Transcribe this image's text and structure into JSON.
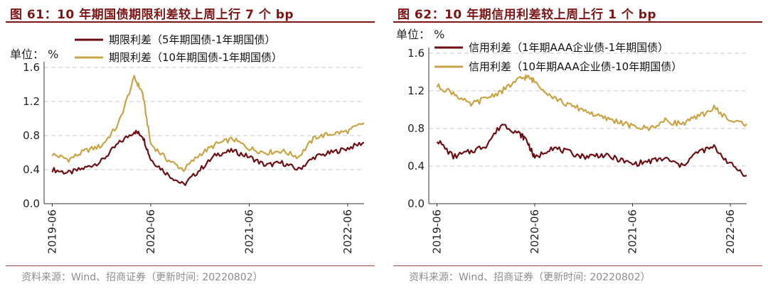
{
  "chart_data": [
    {
      "type": "line",
      "title": "图 61：10 年期国债期限利差较上周上行 7 个 bp",
      "unit_label": "单位： %",
      "ylim": [
        0.0,
        1.6
      ],
      "y_ticks": [
        "0.0",
        "0.4",
        "0.8",
        "1.2",
        "1.6"
      ],
      "x_ticks": [
        "2019-06",
        "2020-06",
        "2021-06",
        "2022-06"
      ],
      "grid": "horizontal dashed",
      "legend_position": "top",
      "source": "资料来源：Wind、招商证券（更新时间: 20220802）",
      "series": [
        {
          "name": "期限利差（5年期国债-1年期国债）",
          "color": "#6b0f14",
          "x": [
            "2019-06",
            "2019-08",
            "2019-10",
            "2019-12",
            "2020-02",
            "2020-04",
            "2020-05",
            "2020-06",
            "2020-08",
            "2020-10",
            "2020-12",
            "2021-02",
            "2021-04",
            "2021-06",
            "2021-08",
            "2021-10",
            "2021-12",
            "2022-02",
            "2022-04",
            "2022-06",
            "2022-08"
          ],
          "values": [
            0.4,
            0.36,
            0.42,
            0.5,
            0.7,
            0.85,
            0.8,
            0.52,
            0.35,
            0.22,
            0.4,
            0.58,
            0.62,
            0.55,
            0.45,
            0.48,
            0.4,
            0.55,
            0.6,
            0.65,
            0.72
          ]
        },
        {
          "name": "期限利差（10年期国债-1年期国债）",
          "color": "#c9a446",
          "x": [
            "2019-06",
            "2019-08",
            "2019-10",
            "2019-12",
            "2020-02",
            "2020-04",
            "2020-05",
            "2020-06",
            "2020-08",
            "2020-10",
            "2020-12",
            "2021-02",
            "2021-04",
            "2021-06",
            "2021-08",
            "2021-10",
            "2021-12",
            "2022-02",
            "2022-04",
            "2022-06",
            "2022-08"
          ],
          "values": [
            0.58,
            0.52,
            0.62,
            0.68,
            0.92,
            1.48,
            1.3,
            0.7,
            0.52,
            0.4,
            0.58,
            0.7,
            0.76,
            0.65,
            0.6,
            0.62,
            0.55,
            0.78,
            0.82,
            0.85,
            0.95
          ]
        }
      ]
    },
    {
      "type": "line",
      "title": "图 62：10 年期信用利差较上周上行 1 个 bp",
      "unit_label": "单位： %",
      "ylim": [
        0.0,
        1.6
      ],
      "y_ticks": [
        "0.0",
        "0.4",
        "0.8",
        "1.2",
        "1.6"
      ],
      "x_ticks": [
        "2019-06",
        "2020-06",
        "2021-06",
        "2022-06"
      ],
      "grid": "horizontal dashed",
      "legend_position": "top",
      "source": "资料来源：Wind、招商证券（更新时间: 20220802）",
      "series": [
        {
          "name": "信用利差（1年期AAA企业债-1年期国债）",
          "color": "#6b0f14",
          "x": [
            "2019-06",
            "2019-08",
            "2019-10",
            "2019-12",
            "2020-02",
            "2020-04",
            "2020-05",
            "2020-06",
            "2020-08",
            "2020-10",
            "2020-12",
            "2021-02",
            "2021-04",
            "2021-06",
            "2021-08",
            "2021-10",
            "2021-12",
            "2022-02",
            "2022-04",
            "2022-06",
            "2022-08"
          ],
          "values": [
            0.68,
            0.5,
            0.55,
            0.62,
            0.85,
            0.75,
            0.68,
            0.48,
            0.6,
            0.55,
            0.5,
            0.52,
            0.48,
            0.42,
            0.45,
            0.48,
            0.4,
            0.55,
            0.6,
            0.42,
            0.3
          ]
        },
        {
          "name": "信用利差（10年期AAA企业债-10年期国债）",
          "color": "#c9a446",
          "x": [
            "2019-06",
            "2019-08",
            "2019-10",
            "2019-12",
            "2020-02",
            "2020-04",
            "2020-05",
            "2020-06",
            "2020-08",
            "2020-10",
            "2020-12",
            "2021-02",
            "2021-04",
            "2021-06",
            "2021-08",
            "2021-10",
            "2021-12",
            "2022-02",
            "2022-04",
            "2022-06",
            "2022-08"
          ],
          "values": [
            1.25,
            1.18,
            1.05,
            1.12,
            1.2,
            1.32,
            1.35,
            1.3,
            1.15,
            1.05,
            1.0,
            0.92,
            0.88,
            0.82,
            0.8,
            0.88,
            0.85,
            0.92,
            1.02,
            0.88,
            0.85
          ]
        }
      ]
    }
  ]
}
